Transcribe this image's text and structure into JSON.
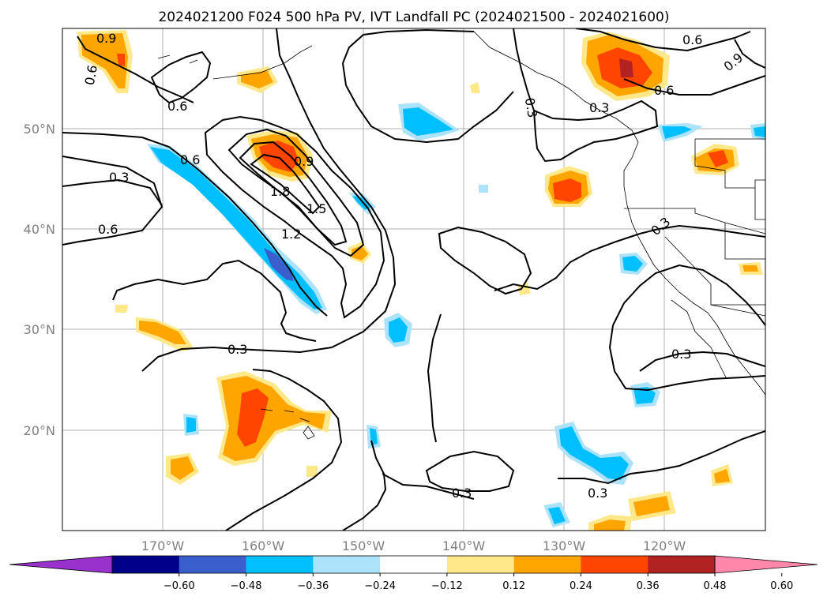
{
  "title": "2024021200 F024 500 hPa PV, IVT Landfall PC (2024021500 - 2024021600)",
  "map": {
    "lon_labels": [
      "170°W",
      "160°W",
      "150°W",
      "140°W",
      "130°W",
      "120°W"
    ],
    "lat_labels": [
      "50°N",
      "40°N",
      "30°N",
      "20°N"
    ],
    "contour_labels": [
      {
        "id": "c1",
        "text": "0.9"
      },
      {
        "id": "c2",
        "text": "0.6"
      },
      {
        "id": "c3",
        "text": "0.6"
      },
      {
        "id": "c4",
        "text": "0.6"
      },
      {
        "id": "c5",
        "text": "0.3"
      },
      {
        "id": "c6",
        "text": "0.6"
      },
      {
        "id": "c7",
        "text": "0.9"
      },
      {
        "id": "c8",
        "text": "1.8"
      },
      {
        "id": "c9",
        "text": "1.5"
      },
      {
        "id": "c10",
        "text": "1.2"
      },
      {
        "id": "c11",
        "text": "0.3"
      },
      {
        "id": "c12",
        "text": "0.3"
      },
      {
        "id": "c13",
        "text": "0.6"
      },
      {
        "id": "c14",
        "text": "0.9"
      },
      {
        "id": "c15",
        "text": "0.6"
      },
      {
        "id": "c16",
        "text": "0.3"
      },
      {
        "id": "c17",
        "text": "0.3"
      },
      {
        "id": "c18",
        "text": "0.3"
      },
      {
        "id": "c19",
        "text": "0.3"
      },
      {
        "id": "c20",
        "text": "0.3"
      }
    ]
  },
  "colorbar": {
    "ticks": [
      "−0.60",
      "−0.48",
      "−0.36",
      "−0.24",
      "−0.12",
      "0.12",
      "0.24",
      "0.36",
      "0.48",
      "0.60"
    ],
    "colors": [
      "#9932CC",
      "#00008B",
      "#3A5FCD",
      "#00BFFF",
      "#ADE3FA",
      "#FFFFFF",
      "#FFE88A",
      "#FFA500",
      "#FF4500",
      "#B22222",
      "#FF88AA"
    ]
  }
}
